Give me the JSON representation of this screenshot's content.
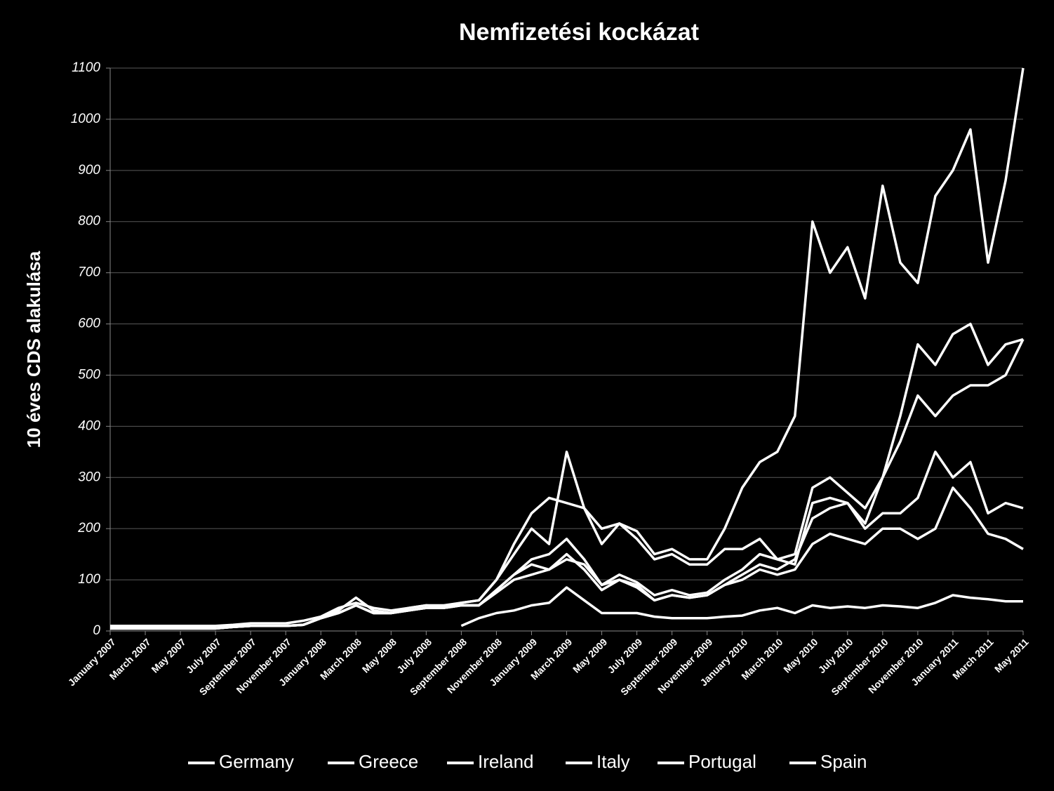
{
  "chart_data": {
    "type": "line",
    "title": "Nemfizetési kockázat",
    "y_label": "10 éves CDS alakulása",
    "categories": [
      "January 2007",
      null,
      "March 2007",
      null,
      "May 2007",
      null,
      "July 2007",
      null,
      "September 2007",
      null,
      "November 2007",
      null,
      "January 2008",
      null,
      "March 2008",
      null,
      "May 2008",
      null,
      "July 2008",
      null,
      "September 2008",
      null,
      "November 2008",
      null,
      "January 2009",
      null,
      "March 2009",
      null,
      "May 2009",
      null,
      "July 2009",
      null,
      "September 2009",
      null,
      "November 2009",
      null,
      "January 2010",
      null,
      "March 2010",
      null,
      "May 2010",
      null,
      "July 2010",
      null,
      "September 2010",
      null,
      "November 2010",
      null,
      "January 2011",
      null,
      "March 2011",
      null,
      "May 2011"
    ],
    "ylim": [
      0,
      1100
    ],
    "yticks": [
      0,
      100,
      200,
      300,
      400,
      500,
      600,
      700,
      800,
      900,
      1000,
      1100
    ],
    "grid": true,
    "legend": "bottom",
    "series": [
      {
        "name": "Germany",
        "color": "#ffffff",
        "values": [
          null,
          null,
          null,
          null,
          null,
          null,
          null,
          null,
          null,
          null,
          null,
          null,
          null,
          null,
          null,
          null,
          null,
          null,
          null,
          null,
          10,
          25,
          35,
          40,
          50,
          55,
          85,
          60,
          35,
          35,
          35,
          28,
          25,
          25,
          25,
          28,
          30,
          40,
          45,
          35,
          50,
          45,
          48,
          45,
          50,
          48,
          45,
          55,
          70,
          65,
          62,
          58,
          58
        ]
      },
      {
        "name": "Greece",
        "color": "#ffffff",
        "values": [
          10,
          10,
          10,
          10,
          10,
          10,
          10,
          12,
          15,
          15,
          15,
          20,
          28,
          45,
          55,
          45,
          40,
          45,
          50,
          48,
          55,
          60,
          100,
          170,
          230,
          260,
          250,
          240,
          200,
          210,
          195,
          150,
          160,
          140,
          140,
          200,
          280,
          330,
          350,
          420,
          800,
          700,
          750,
          650,
          870,
          720,
          680,
          850,
          900,
          980,
          720,
          880,
          1100
        ]
      },
      {
        "name": "Ireland",
        "color": "#ffffff",
        "values": [
          5,
          5,
          5,
          5,
          5,
          5,
          5,
          8,
          10,
          10,
          10,
          12,
          25,
          40,
          65,
          40,
          35,
          45,
          50,
          50,
          55,
          60,
          100,
          150,
          200,
          170,
          350,
          240,
          170,
          210,
          180,
          140,
          150,
          130,
          130,
          160,
          160,
          180,
          140,
          150,
          280,
          300,
          270,
          240,
          300,
          420,
          560,
          520,
          580,
          600,
          520,
          560,
          570
        ]
      },
      {
        "name": "Italy",
        "color": "#ffffff",
        "values": [
          5,
          5,
          5,
          5,
          5,
          5,
          5,
          8,
          10,
          10,
          10,
          12,
          25,
          35,
          50,
          35,
          35,
          40,
          45,
          45,
          50,
          50,
          75,
          100,
          110,
          120,
          140,
          130,
          90,
          100,
          90,
          60,
          70,
          65,
          70,
          90,
          100,
          120,
          110,
          120,
          170,
          190,
          180,
          170,
          200,
          200,
          180,
          200,
          280,
          240,
          190,
          180,
          160
        ]
      },
      {
        "name": "Portugal",
        "color": "#ffffff",
        "values": [
          5,
          5,
          5,
          5,
          5,
          5,
          5,
          8,
          10,
          10,
          10,
          12,
          25,
          35,
          50,
          35,
          35,
          40,
          45,
          45,
          50,
          50,
          80,
          110,
          140,
          150,
          180,
          140,
          90,
          110,
          95,
          70,
          80,
          70,
          75,
          100,
          120,
          150,
          140,
          130,
          250,
          260,
          250,
          210,
          300,
          370,
          460,
          420,
          460,
          480,
          480,
          500,
          570
        ]
      },
      {
        "name": "Spain",
        "color": "#ffffff",
        "values": [
          5,
          5,
          5,
          5,
          5,
          5,
          5,
          8,
          10,
          10,
          10,
          12,
          25,
          35,
          50,
          35,
          35,
          40,
          45,
          45,
          50,
          50,
          80,
          110,
          130,
          120,
          150,
          120,
          80,
          100,
          85,
          60,
          70,
          65,
          70,
          90,
          110,
          130,
          120,
          140,
          220,
          240,
          250,
          200,
          230,
          230,
          260,
          350,
          300,
          330,
          230,
          250,
          240
        ]
      }
    ]
  }
}
